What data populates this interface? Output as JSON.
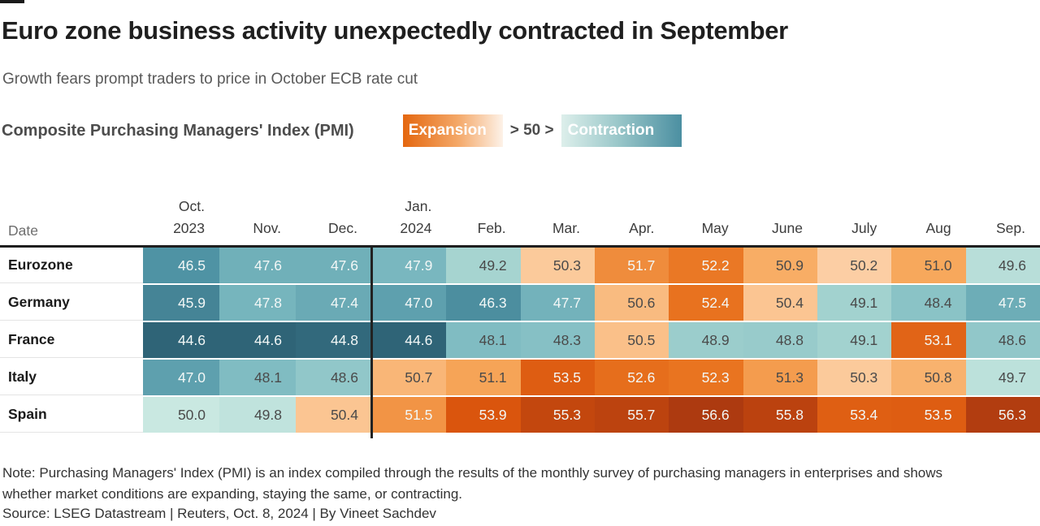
{
  "page": {
    "title": "Euro zone business activity unexpectedly contracted in September",
    "subtitle": "Growth fears prompt traders to price in October ECB rate cut"
  },
  "legend": {
    "label": "Composite Purchasing Managers' Index (PMI)",
    "expansion_label": "Expansion",
    "threshold_label": "> 50 >",
    "contraction_label": "Contraction",
    "expansion_gradient": [
      "#e4670f",
      "#f4a868",
      "#fdf2e8"
    ],
    "contraction_gradient": [
      "#ddefeb",
      "#9dc9cb",
      "#4b8fa1"
    ]
  },
  "table": {
    "date_label": "Date"
  },
  "chart_data": {
    "type": "heatmap",
    "title": "Composite Purchasing Managers' Index (PMI)",
    "categories": [
      "Oct. 2023",
      "Nov.",
      "Dec.",
      "Jan. 2024",
      "Feb.",
      "Mar.",
      "Apr.",
      "May",
      "June",
      "July",
      "Aug",
      "Sep."
    ],
    "header_labels": [
      [
        "Oct.",
        "2023"
      ],
      [
        "Nov."
      ],
      [
        "Dec."
      ],
      [
        "Jan.",
        "2024"
      ],
      [
        "Feb."
      ],
      [
        "Mar."
      ],
      [
        "Apr."
      ],
      [
        "May"
      ],
      [
        "June"
      ],
      [
        "July"
      ],
      [
        "Aug"
      ],
      [
        "Sep."
      ]
    ],
    "series": [
      {
        "name": "Eurozone",
        "values": [
          46.5,
          47.6,
          47.6,
          47.9,
          49.2,
          50.3,
          51.7,
          52.2,
          50.9,
          50.2,
          51.0,
          49.6
        ]
      },
      {
        "name": "Germany",
        "values": [
          45.9,
          47.8,
          47.4,
          47.0,
          46.3,
          47.7,
          50.6,
          52.4,
          50.4,
          49.1,
          48.4,
          47.5
        ]
      },
      {
        "name": "France",
        "values": [
          44.6,
          44.6,
          44.8,
          44.6,
          48.1,
          48.3,
          50.5,
          48.9,
          48.8,
          49.1,
          53.1,
          48.6
        ]
      },
      {
        "name": "Italy",
        "values": [
          47.0,
          48.1,
          48.6,
          50.7,
          51.1,
          53.5,
          52.6,
          52.3,
          51.3,
          50.3,
          50.8,
          49.7
        ]
      },
      {
        "name": "Spain",
        "values": [
          50.0,
          49.8,
          50.4,
          51.5,
          53.9,
          55.3,
          55.7,
          56.6,
          55.8,
          53.4,
          53.5,
          56.3
        ]
      }
    ],
    "threshold": 50,
    "year_divider_after_column": 3,
    "color_scale": {
      "teal_stops": [
        [
          44.6,
          "#2f6477"
        ],
        [
          46.5,
          "#4f93a4"
        ],
        [
          48.0,
          "#7cbac1"
        ],
        [
          49.2,
          "#a6d4d0"
        ],
        [
          50.0,
          "#c9e8e1"
        ]
      ],
      "orange_stops": [
        [
          50.0,
          "#fdd8b6"
        ],
        [
          51.0,
          "#f7a85c"
        ],
        [
          52.3,
          "#e97420"
        ],
        [
          54.0,
          "#d9530c"
        ],
        [
          56.6,
          "#ad3a10"
        ]
      ]
    },
    "text_colors": {
      "dark": "#4a4a4a",
      "light": "#f2f7f6"
    },
    "white_text_if": "value <= 48.0 or value >= 51.5"
  },
  "footer": {
    "note": "Note: Purchasing Managers' Index (PMI) is an index compiled through the results of the monthly survey of purchasing managers in enterprises and shows whether market conditions are expanding, staying the same, or contracting.",
    "source": "Source: LSEG Datastream | Reuters, Oct. 8, 2024 | By Vineet Sachdev"
  }
}
